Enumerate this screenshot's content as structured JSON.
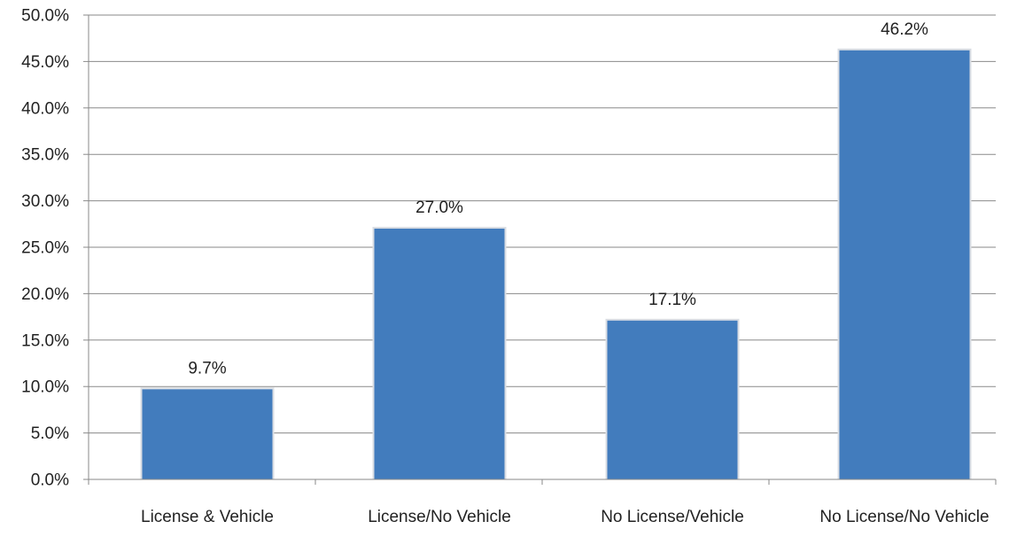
{
  "chart_data": {
    "type": "bar",
    "title": "",
    "xlabel": "",
    "ylabel": "",
    "categories": [
      "License & Vehicle",
      "License/No Vehicle",
      "No License/Vehicle",
      "No License/No Vehicle"
    ],
    "values": [
      9.7,
      27.0,
      17.1,
      46.2
    ],
    "value_labels": [
      "9.7%",
      "27.0%",
      "17.1%",
      "46.2%"
    ],
    "ylim": [
      0,
      50
    ],
    "y_ticks": [
      0,
      5,
      10,
      15,
      20,
      25,
      30,
      35,
      40,
      45,
      50
    ],
    "y_tick_labels": [
      "0.0%",
      "5.0%",
      "10.0%",
      "15.0%",
      "20.0%",
      "25.0%",
      "30.0%",
      "35.0%",
      "40.0%",
      "45.0%",
      "50.0%"
    ],
    "grid": true,
    "legend": "none",
    "colors": {
      "bar": "#427CBD",
      "bar_edge": "#D9DDE3",
      "grid": "#8A8A8A",
      "axis": "#8A8A8A"
    }
  }
}
